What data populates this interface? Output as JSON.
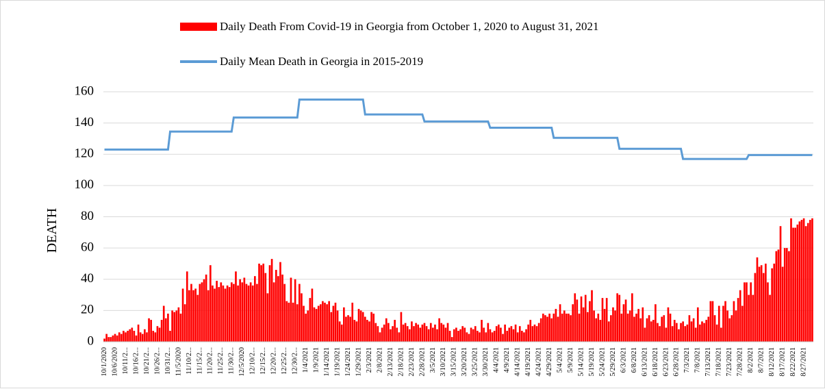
{
  "chart_data": {
    "type": "bar",
    "y_label": "DEATH",
    "ylim": [
      0,
      160
    ],
    "yticks": [
      0,
      20,
      40,
      60,
      80,
      100,
      120,
      140,
      160
    ],
    "grid": true,
    "categories": [
      "10/1/2020",
      null,
      null,
      null,
      null,
      "10/6/2020",
      null,
      null,
      null,
      null,
      "10/11/2...",
      null,
      null,
      null,
      null,
      "10/16/2...",
      null,
      null,
      null,
      null,
      "10/21/2...",
      null,
      null,
      null,
      null,
      "10/26/2...",
      null,
      null,
      null,
      null,
      "10/31/2...",
      null,
      null,
      null,
      null,
      "11/5/2020",
      null,
      null,
      null,
      null,
      "11/10/2...",
      null,
      null,
      null,
      null,
      "11/15/2...",
      null,
      null,
      null,
      null,
      "11/20/2...",
      null,
      null,
      null,
      null,
      "11/25/2...",
      null,
      null,
      null,
      null,
      "11/30/2...",
      null,
      null,
      null,
      null,
      "12/5/2020",
      null,
      null,
      null,
      null,
      "12/10/2...",
      null,
      null,
      null,
      null,
      "12/15/2...",
      null,
      null,
      null,
      null,
      "12/20/2...",
      null,
      null,
      null,
      null,
      "12/25/2...",
      null,
      null,
      null,
      null,
      "12/30/2...",
      null,
      null,
      null,
      null,
      "1/4/2021",
      null,
      null,
      null,
      null,
      "1/9/2021",
      null,
      null,
      null,
      null,
      "1/14/2021",
      null,
      null,
      null,
      null,
      "1/19/2021",
      null,
      null,
      null,
      null,
      "1/24/2021",
      null,
      null,
      null,
      null,
      "1/29/2021",
      null,
      null,
      null,
      null,
      "2/3/2021",
      null,
      null,
      null,
      null,
      "2/8/2021",
      null,
      null,
      null,
      null,
      "2/13/2021",
      null,
      null,
      null,
      null,
      "2/18/2021",
      null,
      null,
      null,
      null,
      "2/23/2021",
      null,
      null,
      null,
      null,
      "2/28/2021",
      null,
      null,
      null,
      null,
      "3/5/2021",
      null,
      null,
      null,
      null,
      "3/10/2021",
      null,
      null,
      null,
      null,
      "3/15/2021",
      null,
      null,
      null,
      null,
      "3/20/2021",
      null,
      null,
      null,
      null,
      "3/25/2021",
      null,
      null,
      null,
      null,
      "3/30/2021",
      null,
      null,
      null,
      null,
      "4/4/2021",
      null,
      null,
      null,
      null,
      "4/9/2021",
      null,
      null,
      null,
      null,
      "4/14/2021",
      null,
      null,
      null,
      null,
      "4/19/2021",
      null,
      null,
      null,
      null,
      "4/24/2021",
      null,
      null,
      null,
      null,
      "4/29/2021",
      null,
      null,
      null,
      null,
      "5/4/2021",
      null,
      null,
      null,
      null,
      "5/9/2021",
      null,
      null,
      null,
      null,
      "5/14/2021",
      null,
      null,
      null,
      null,
      "5/19/2021",
      null,
      null,
      null,
      null,
      "5/24/2021",
      null,
      null,
      null,
      null,
      "5/29/2021",
      null,
      null,
      null,
      null,
      "6/3/2021",
      null,
      null,
      null,
      null,
      "6/8/2021",
      null,
      null,
      null,
      null,
      "6/13/2021",
      null,
      null,
      null,
      null,
      "6/18/2021",
      null,
      null,
      null,
      null,
      "6/23/2021",
      null,
      null,
      null,
      null,
      "6/28/2021",
      null,
      null,
      null,
      null,
      "7/3/2021",
      null,
      null,
      null,
      null,
      "7/8/2021",
      null,
      null,
      null,
      null,
      "7/13/2021",
      null,
      null,
      null,
      null,
      "7/18/2021",
      null,
      null,
      null,
      null,
      "7/23/2021",
      null,
      null,
      null,
      null,
      "7/28/2021",
      null,
      null,
      null,
      null,
      "8/2/2021",
      null,
      null,
      null,
      null,
      "8/7/2021",
      null,
      null,
      null,
      null,
      "8/12/2021",
      null,
      null,
      null,
      null,
      "8/17/2021",
      null,
      null,
      null,
      null,
      "8/22/2021",
      null,
      null,
      null,
      null,
      "8/27/2021",
      null,
      null,
      null,
      null
    ],
    "series": [
      {
        "name": "Daily Death From Covid-19 in Georgia from October 1, 2020 to August 31, 2021",
        "type": "bar",
        "color": "#ff0000",
        "values": [
          2,
          5,
          3,
          3,
          4,
          5,
          4,
          6,
          5,
          7,
          6,
          7,
          8,
          9,
          7,
          4,
          11,
          6,
          5,
          8,
          6,
          15,
          14,
          7,
          6,
          10,
          9,
          14,
          23,
          15,
          18,
          7,
          20,
          19,
          20,
          22,
          18,
          34,
          24,
          45,
          33,
          37,
          33,
          34,
          30,
          37,
          38,
          40,
          43,
          33,
          49,
          36,
          34,
          39,
          35,
          38,
          36,
          34,
          36,
          35,
          38,
          37,
          45,
          36,
          40,
          38,
          41,
          37,
          36,
          38,
          36,
          42,
          37,
          50,
          49,
          50,
          44,
          31,
          49,
          53,
          38,
          46,
          42,
          51,
          43,
          37,
          26,
          25,
          41,
          25,
          40,
          24,
          37,
          31,
          23,
          18,
          20,
          28,
          34,
          22,
          21,
          23,
          24,
          26,
          25,
          24,
          26,
          19,
          23,
          25,
          20,
          13,
          11,
          22,
          16,
          17,
          16,
          25,
          14,
          13,
          21,
          20,
          19,
          16,
          14,
          13,
          19,
          18,
          12,
          10,
          6,
          9,
          11,
          15,
          12,
          8,
          10,
          14,
          9,
          6,
          19,
          11,
          12,
          10,
          8,
          13,
          10,
          12,
          11,
          9,
          11,
          12,
          10,
          8,
          12,
          9,
          11,
          8,
          15,
          12,
          11,
          9,
          12,
          7,
          3,
          8,
          9,
          7,
          8,
          10,
          9,
          6,
          5,
          9,
          8,
          10,
          7,
          6,
          14,
          9,
          6,
          12,
          8,
          6,
          7,
          10,
          11,
          9,
          5,
          11,
          7,
          9,
          10,
          8,
          11,
          6,
          10,
          7,
          6,
          8,
          11,
          14,
          10,
          11,
          10,
          12,
          15,
          18,
          17,
          16,
          18,
          15,
          18,
          21,
          16,
          24,
          18,
          20,
          18,
          18,
          17,
          24,
          31,
          27,
          18,
          29,
          22,
          30,
          19,
          26,
          33,
          20,
          15,
          18,
          14,
          28,
          21,
          28,
          13,
          17,
          22,
          20,
          31,
          30,
          18,
          24,
          27,
          18,
          20,
          31,
          16,
          18,
          21,
          15,
          22,
          9,
          15,
          17,
          13,
          14,
          24,
          12,
          10,
          16,
          17,
          9,
          22,
          18,
          10,
          14,
          12,
          8,
          12,
          13,
          10,
          11,
          17,
          13,
          15,
          9,
          22,
          11,
          13,
          12,
          14,
          16,
          26,
          26,
          17,
          11,
          23,
          9,
          23,
          26,
          20,
          15,
          17,
          26,
          20,
          28,
          33,
          23,
          38,
          38,
          30,
          38,
          30,
          44,
          54,
          48,
          49,
          44,
          50,
          38,
          30,
          47,
          50,
          58,
          59,
          74,
          48,
          60,
          60,
          58,
          79,
          73,
          73,
          75,
          77,
          78,
          79,
          74,
          76,
          78,
          79
        ]
      },
      {
        "name": "Daily Mean Death in Georgia in 2015-2019",
        "type": "line",
        "color": "#5b9bd5",
        "values": [
          123,
          123,
          123,
          123,
          123,
          123,
          123,
          123,
          123,
          123,
          123,
          123,
          123,
          123,
          123,
          123,
          123,
          123,
          123,
          123,
          123,
          123,
          123,
          123,
          123,
          123,
          123,
          123,
          123,
          123,
          123,
          134.5,
          134.5,
          134.5,
          134.5,
          134.5,
          134.5,
          134.5,
          134.5,
          134.5,
          134.5,
          134.5,
          134.5,
          134.5,
          134.5,
          134.5,
          134.5,
          134.5,
          134.5,
          134.5,
          134.5,
          134.5,
          134.5,
          134.5,
          134.5,
          134.5,
          134.5,
          134.5,
          134.5,
          134.5,
          134.5,
          143.5,
          143.5,
          143.5,
          143.5,
          143.5,
          143.5,
          143.5,
          143.5,
          143.5,
          143.5,
          143.5,
          143.5,
          143.5,
          143.5,
          143.5,
          143.5,
          143.5,
          143.5,
          143.5,
          143.5,
          143.5,
          143.5,
          143.5,
          143.5,
          143.5,
          143.5,
          143.5,
          143.5,
          143.5,
          143.5,
          143.5,
          155,
          155,
          155,
          155,
          155,
          155,
          155,
          155,
          155,
          155,
          155,
          155,
          155,
          155,
          155,
          155,
          155,
          155,
          155,
          155,
          155,
          155,
          155,
          155,
          155,
          155,
          155,
          155,
          155,
          155,
          155,
          145.5,
          145.5,
          145.5,
          145.5,
          145.5,
          145.5,
          145.5,
          145.5,
          145.5,
          145.5,
          145.5,
          145.5,
          145.5,
          145.5,
          145.5,
          145.5,
          145.5,
          145.5,
          145.5,
          145.5,
          145.5,
          145.5,
          145.5,
          145.5,
          145.5,
          145.5,
          145.5,
          145.5,
          141,
          141,
          141,
          141,
          141,
          141,
          141,
          141,
          141,
          141,
          141,
          141,
          141,
          141,
          141,
          141,
          141,
          141,
          141,
          141,
          141,
          141,
          141,
          141,
          141,
          141,
          141,
          141,
          141,
          141,
          141,
          137,
          137,
          137,
          137,
          137,
          137,
          137,
          137,
          137,
          137,
          137,
          137,
          137,
          137,
          137,
          137,
          137,
          137,
          137,
          137,
          137,
          137,
          137,
          137,
          137,
          137,
          137,
          137,
          137,
          137,
          130.5,
          130.5,
          130.5,
          130.5,
          130.5,
          130.5,
          130.5,
          130.5,
          130.5,
          130.5,
          130.5,
          130.5,
          130.5,
          130.5,
          130.5,
          130.5,
          130.5,
          130.5,
          130.5,
          130.5,
          130.5,
          130.5,
          130.5,
          130.5,
          130.5,
          130.5,
          130.5,
          130.5,
          130.5,
          130.5,
          130.5,
          123.5,
          123.5,
          123.5,
          123.5,
          123.5,
          123.5,
          123.5,
          123.5,
          123.5,
          123.5,
          123.5,
          123.5,
          123.5,
          123.5,
          123.5,
          123.5,
          123.5,
          123.5,
          123.5,
          123.5,
          123.5,
          123.5,
          123.5,
          123.5,
          123.5,
          123.5,
          123.5,
          123.5,
          123.5,
          123.5,
          117,
          117,
          117,
          117,
          117,
          117,
          117,
          117,
          117,
          117,
          117,
          117,
          117,
          117,
          117,
          117,
          117,
          117,
          117,
          117,
          117,
          117,
          117,
          117,
          117,
          117,
          117,
          117,
          117,
          117,
          117,
          119.5,
          119.5,
          119.5,
          119.5,
          119.5,
          119.5,
          119.5,
          119.5,
          119.5,
          119.5,
          119.5,
          119.5,
          119.5,
          119.5,
          119.5,
          119.5,
          119.5,
          119.5,
          119.5,
          119.5,
          119.5,
          119.5,
          119.5,
          119.5,
          119.5,
          119.5,
          119.5,
          119.5,
          119.5,
          119.5,
          119.5
        ]
      }
    ]
  }
}
